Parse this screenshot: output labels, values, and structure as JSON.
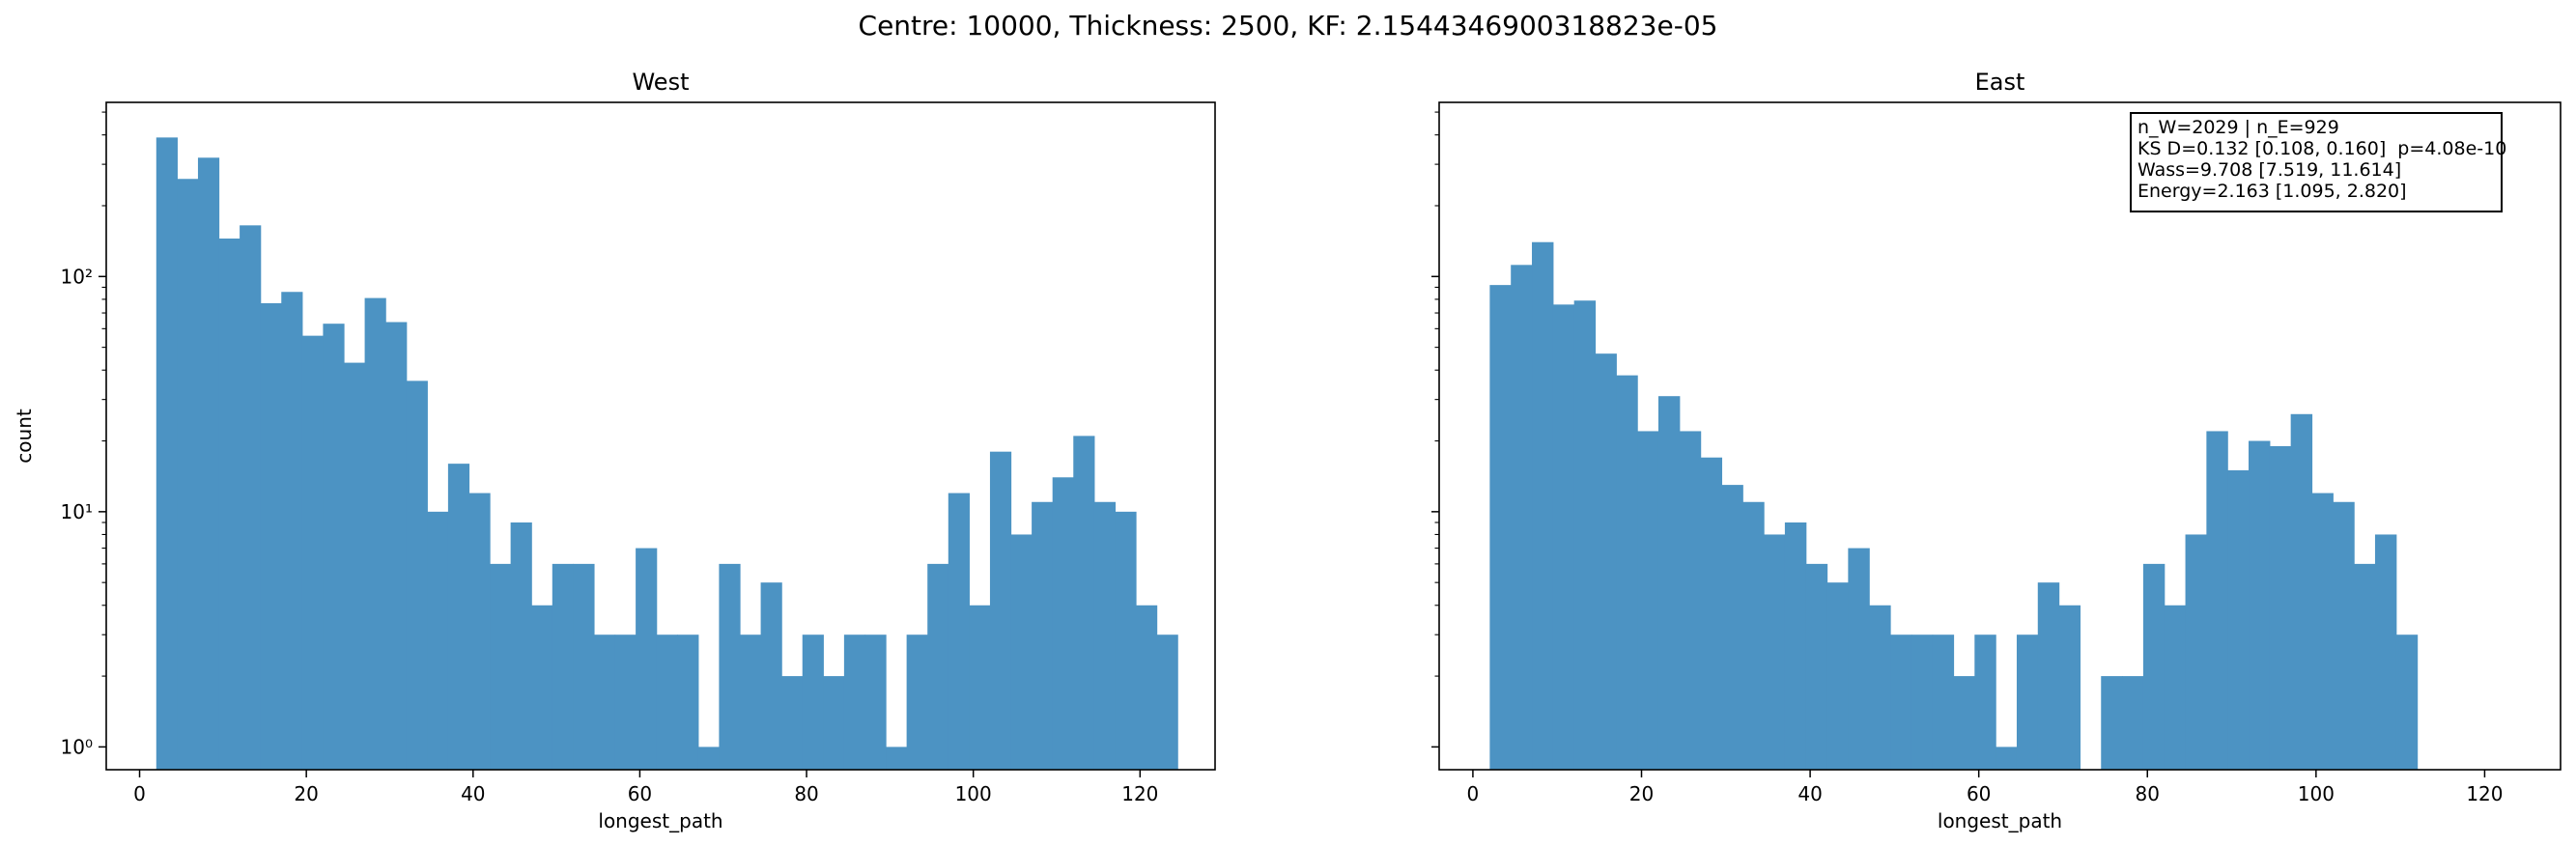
{
  "suptitle": "Centre: 10000, Thickness: 2500, KF: 2.1544346900318823e-05",
  "stats": {
    "line1": "n_W=2029 | n_E=929",
    "line2": "KS D=0.132 [0.108, 0.160]  p=4.08e-10",
    "line3": "Wass=9.708 [7.519, 11.614]",
    "line4": "Energy=2.163 [1.095, 2.820]"
  },
  "chart_data": [
    {
      "type": "bar",
      "title": "West",
      "xlabel": "longest_path",
      "ylabel": "count",
      "yscale": "log",
      "xlim": [
        -4,
        129
      ],
      "ylim": [
        0.8,
        550
      ],
      "xticks": [
        0,
        20,
        40,
        60,
        80,
        100,
        120
      ],
      "yticks": [
        1,
        10,
        100
      ],
      "ytick_labels": [
        "10⁰",
        "10¹",
        "10²"
      ],
      "bin_start": 2,
      "bin_width": 2.5,
      "color": "#4c93c3",
      "values": [
        390,
        260,
        320,
        145,
        165,
        77,
        86,
        56,
        63,
        43,
        81,
        64,
        36,
        10,
        16,
        12,
        6,
        9,
        4,
        6,
        6,
        3,
        3,
        7,
        3,
        3,
        1,
        6,
        3,
        5,
        2,
        3,
        2,
        3,
        3,
        1,
        3,
        6,
        12,
        4,
        18,
        8,
        11,
        14,
        21,
        11,
        10,
        4,
        3
      ]
    },
    {
      "type": "bar",
      "title": "East",
      "xlabel": "longest_path",
      "ylabel": "",
      "yscale": "log",
      "xlim": [
        -4,
        129
      ],
      "ylim": [
        0.8,
        550
      ],
      "xticks": [
        0,
        20,
        40,
        60,
        80,
        100,
        120
      ],
      "yticks": [
        1,
        10,
        100
      ],
      "bin_start": 2,
      "bin_width": 2.5,
      "color": "#4c93c3",
      "values": [
        92,
        112,
        140,
        76,
        79,
        47,
        38,
        22,
        31,
        22,
        17,
        13,
        11,
        8,
        9,
        6,
        5,
        7,
        4,
        3,
        3,
        3,
        2,
        3,
        1,
        3,
        5,
        4,
        0,
        2,
        2,
        6,
        4,
        8,
        22,
        15,
        20,
        19,
        26,
        12,
        11,
        6,
        8,
        3
      ]
    }
  ]
}
